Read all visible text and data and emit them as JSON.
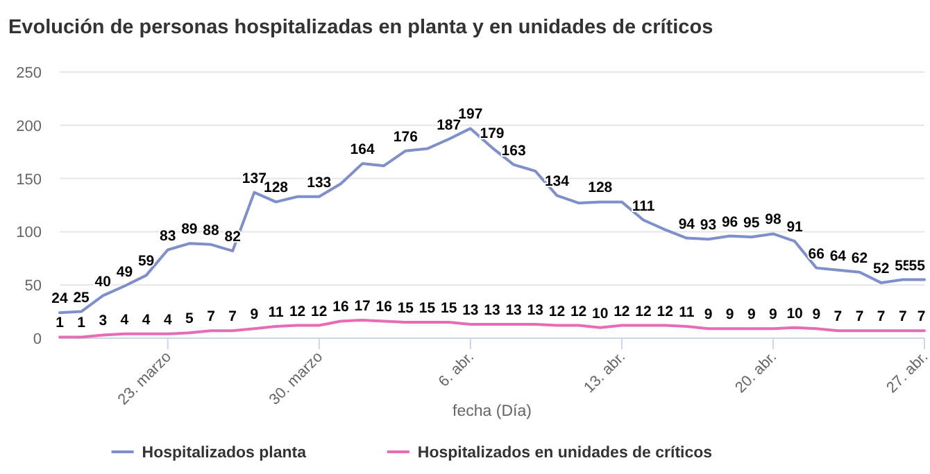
{
  "chart_data": {
    "type": "line",
    "title": "Evolución de personas hospitalizadas en planta y en unidades de críticos",
    "xlabel": "fecha (Día)",
    "x": [
      "--03-18",
      "--03-19",
      "--03-20",
      "--03-21",
      "--03-22",
      "--03-23",
      "--03-24",
      "--03-25",
      "--03-26",
      "--03-27",
      "--03-28",
      "--03-29",
      "--03-30",
      "--03-31",
      "--04-01",
      "--04-02",
      "--04-03",
      "--04-04",
      "--04-05",
      "--04-06",
      "--04-07",
      "--04-08",
      "--04-09",
      "--04-10",
      "--04-11",
      "--04-12",
      "--04-13",
      "--04-14",
      "--04-15",
      "--04-16",
      "--04-17",
      "--04-18",
      "--04-19",
      "--04-20",
      "--04-21",
      "--04-22",
      "--04-23",
      "--04-24",
      "--04-25",
      "--04-26",
      "--04-27"
    ],
    "series": [
      {
        "name": "Hospitalizados planta",
        "color": "#7f8fc9",
        "values": [
          24,
          25,
          40,
          49,
          59,
          83,
          89,
          88,
          82,
          137,
          128,
          133,
          133,
          145,
          164,
          162,
          176,
          178,
          187,
          197,
          179,
          163,
          157,
          134,
          127,
          128,
          128,
          111,
          102,
          94,
          93,
          96,
          95,
          98,
          91,
          66,
          64,
          62,
          52,
          55,
          55
        ],
        "value_labels": [
          "24",
          "25",
          "40",
          "49",
          "59",
          "83",
          "89",
          "88",
          "82",
          "137",
          "128",
          null,
          "133",
          null,
          "164",
          null,
          "176",
          null,
          "187",
          "197",
          "179",
          "163",
          null,
          "134",
          null,
          "128",
          null,
          "111",
          null,
          "94",
          "93",
          "96",
          "95",
          "98",
          "91",
          "66",
          "64",
          "62",
          "52",
          "55",
          "55"
        ]
      },
      {
        "name": "Hospitalizados en unidades de críticos",
        "color": "#e86bb5",
        "values": [
          1,
          1,
          3,
          4,
          4,
          4,
          5,
          7,
          7,
          9,
          11,
          12,
          12,
          16,
          17,
          16,
          15,
          15,
          15,
          13,
          13,
          13,
          13,
          12,
          12,
          10,
          12,
          12,
          12,
          11,
          9,
          9,
          9,
          9,
          10,
          9,
          7,
          7,
          7,
          7,
          7
        ],
        "value_labels": [
          "1",
          "1",
          "3",
          "4",
          "4",
          "4",
          "5",
          "7",
          "7",
          "9",
          "11",
          "12",
          "12",
          "16",
          "17",
          "16",
          "15",
          "15",
          "15",
          "13",
          "13",
          "13",
          "13",
          "12",
          "12",
          "10",
          "12",
          "12",
          "12",
          "11",
          "9",
          "9",
          "9",
          "9",
          "10",
          "9",
          "7",
          "7",
          "7",
          "7",
          "7"
        ]
      }
    ],
    "xlim": [
      "--03-18",
      "--04-27"
    ],
    "xticks": [
      {
        "value": "--03-23",
        "label": "23. marzo"
      },
      {
        "value": "--03-30",
        "label": "30. marzo"
      },
      {
        "value": "--04-06",
        "label": "6. abr."
      },
      {
        "value": "--04-13",
        "label": "13. abr."
      },
      {
        "value": "--04-20",
        "label": "20. abr."
      },
      {
        "value": "--04-27",
        "label": "27. abr."
      }
    ],
    "ylim": [
      0,
      250
    ],
    "yticks": [
      0,
      50,
      100,
      150,
      200,
      250
    ],
    "grid": "y",
    "legend": "bottom",
    "marker": "none",
    "line_style": "solid"
  }
}
